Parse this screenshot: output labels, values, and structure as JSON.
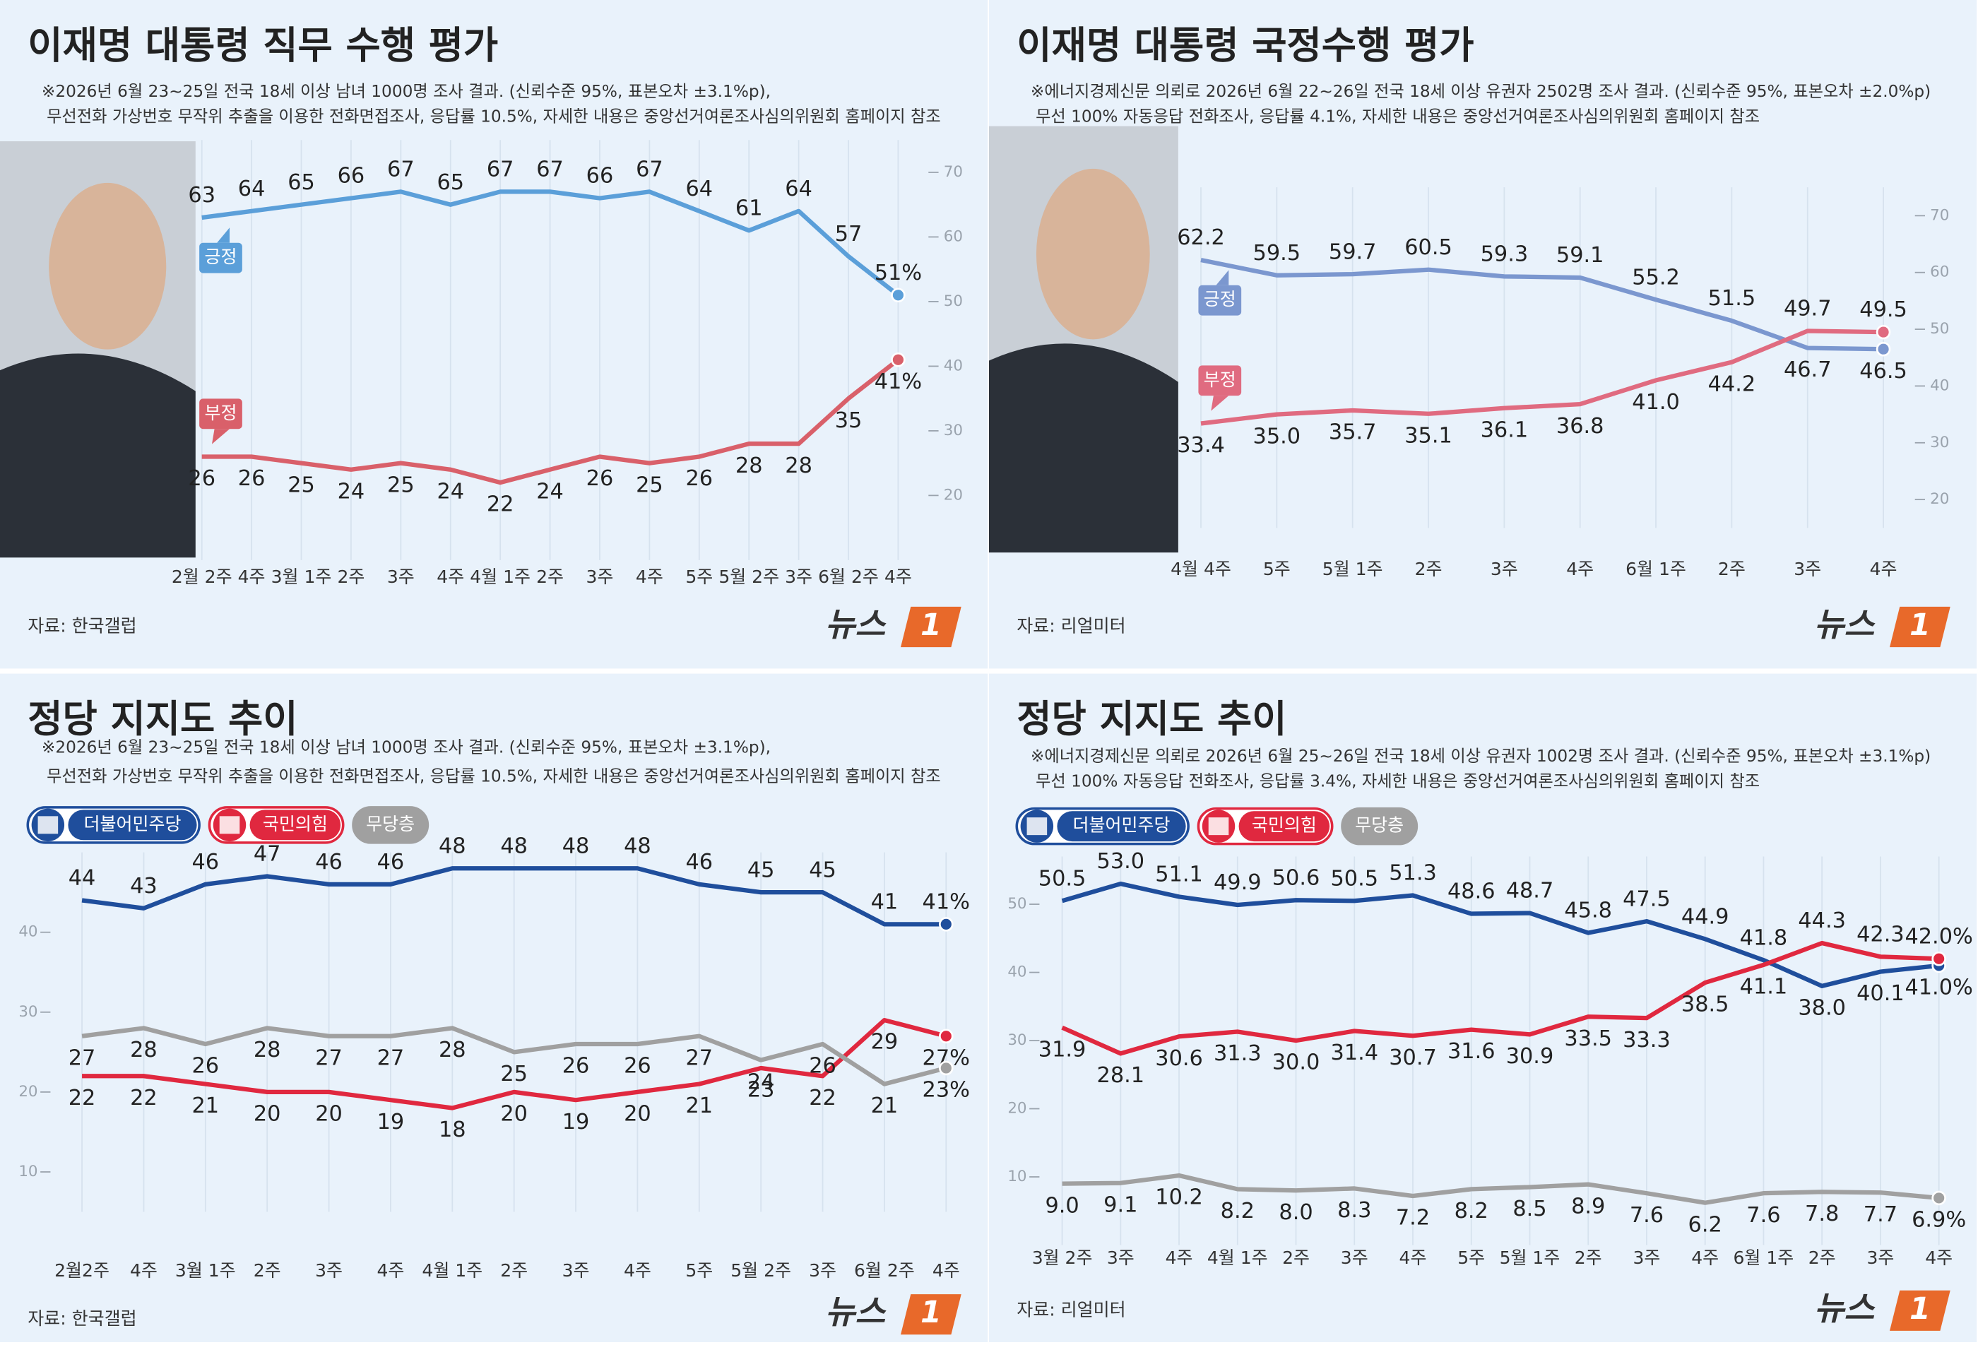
{
  "chart_data": [
    {
      "type": "line",
      "title": "이재명 대통령 직무 수행 평가",
      "notes": [
        "※2026년 6월 23~25일 전국 18세 이상 남녀 1000명 조사 결과. (신뢰수준 95%, 표본오차 ±3.1%p),",
        "무선전화 가상번호 무작위 추출을 이용한 전화면접조사, 응답률 10.5%, 자세한 내용은 중앙선거여론조사심의위원회 홈페이지 참조"
      ],
      "source": "자료: 한국갤럽",
      "logo": [
        "뉴스",
        "1"
      ],
      "categories": [
        "2월 2주",
        "4주",
        "3월 1주",
        "2주",
        "3주",
        "4주",
        "4월 1주",
        "2주",
        "3주",
        "4주",
        "5주",
        "5월 2주",
        "3주",
        "6월 2주",
        "4주"
      ],
      "series": [
        {
          "name": "긍정",
          "color": "#5b9fd9",
          "values": [
            63,
            64,
            65,
            66,
            67,
            65,
            67,
            67,
            66,
            67,
            64,
            61,
            64,
            57,
            51
          ],
          "value_labels": [
            "63",
            "64",
            "65",
            "66",
            "67",
            "65",
            "67",
            "67",
            "66",
            "67",
            "64",
            "61",
            "64",
            "57",
            "51%"
          ]
        },
        {
          "name": "부정",
          "color": "#d9606a",
          "values": [
            26,
            26,
            25,
            24,
            25,
            24,
            22,
            24,
            26,
            25,
            26,
            28,
            28,
            35,
            41
          ],
          "value_labels": [
            "26",
            "26",
            "25",
            "24",
            "25",
            "24",
            "22",
            "24",
            "26",
            "25",
            "26",
            "28",
            "28",
            "35",
            "41%"
          ]
        }
      ],
      "ylim": [
        10,
        75
      ],
      "yticks": [
        20,
        30,
        40,
        50,
        60,
        70
      ],
      "yaxis_side": "right"
    },
    {
      "type": "line",
      "title": "이재명 대통령 국정수행 평가",
      "notes": [
        "※에너지경제신문 의뢰로 2026년 6월 22~26일 전국 18세 이상 유권자 2502명 조사 결과. (신뢰수준 95%, 표본오차 ±2.0%p)",
        "무선 100% 자동응답 전화조사, 응답률 4.1%, 자세한 내용은 중앙선거여론조사심의위원회 홈페이지 참조"
      ],
      "source": "자료: 리얼미터",
      "logo": [
        "뉴스",
        "1"
      ],
      "categories": [
        "4월 4주",
        "5주",
        "5월 1주",
        "2주",
        "3주",
        "4주",
        "6월 1주",
        "2주",
        "3주",
        "4주"
      ],
      "series": [
        {
          "name": "긍정",
          "color": "#7b97cf",
          "values": [
            62.2,
            59.5,
            59.7,
            60.5,
            59.3,
            59.1,
            55.2,
            51.5,
            46.7,
            46.5
          ],
          "value_labels": [
            "62.2",
            "59.5",
            "59.7",
            "60.5",
            "59.3",
            "59.1",
            "55.2",
            "51.5",
            "46.7",
            "46.5"
          ]
        },
        {
          "name": "부정",
          "color": "#e06b80",
          "values": [
            33.4,
            35.0,
            35.7,
            35.1,
            36.1,
            36.8,
            41.0,
            44.2,
            49.7,
            49.5
          ],
          "value_labels": [
            "33.4",
            "35.0",
            "35.7",
            "35.1",
            "36.1",
            "36.8",
            "41.0",
            "44.2",
            "49.7",
            "49.5"
          ]
        }
      ],
      "ylim": [
        15,
        75
      ],
      "yticks": [
        20,
        30,
        40,
        50,
        60,
        70
      ],
      "yaxis_side": "right"
    },
    {
      "type": "line",
      "title": "정당 지지도 추이",
      "notes": [
        "※2026년 6월 23~25일 전국 18세 이상 남녀 1000명 조사 결과. (신뢰수준 95%, 표본오차 ±3.1%p),",
        "무선전화 가상번호 무작위 추출을 이용한 전화면접조사, 응답률 10.5%, 자세한 내용은 중앙선거여론조사심의위원회 홈페이지 참조"
      ],
      "source": "자료: 한국갤럽",
      "logo": [
        "뉴스",
        "1"
      ],
      "categories": [
        "2월2주",
        "4주",
        "3월 1주",
        "2주",
        "3주",
        "4주",
        "4월 1주",
        "2주",
        "3주",
        "4주",
        "5주",
        "5월 2주",
        "3주",
        "6월 2주",
        "4주"
      ],
      "series": [
        {
          "name": "더불어민주당",
          "color": "#1f4e9c",
          "values": [
            44,
            43,
            46,
            47,
            46,
            46,
            48,
            48,
            48,
            48,
            46,
            45,
            45,
            41,
            41
          ],
          "value_labels": [
            "44",
            "43",
            "46",
            "47",
            "46",
            "46",
            "48",
            "48",
            "48",
            "48",
            "46",
            "45",
            "45",
            "41",
            "41%"
          ]
        },
        {
          "name": "국민의힘",
          "color": "#e0283f",
          "values": [
            22,
            22,
            21,
            20,
            20,
            19,
            18,
            20,
            19,
            20,
            21,
            23,
            22,
            29,
            27
          ],
          "value_labels": [
            "22",
            "22",
            "21",
            "20",
            "20",
            "19",
            "18",
            "20",
            "19",
            "20",
            "21",
            "23",
            "22",
            "29",
            "27%"
          ]
        },
        {
          "name": "무당층",
          "color": "#a0a0a0",
          "values": [
            27,
            28,
            26,
            28,
            27,
            27,
            28,
            25,
            26,
            26,
            27,
            24,
            26,
            21,
            23
          ],
          "value_labels": [
            "27",
            "28",
            "26",
            "28",
            "27",
            "27",
            "28",
            "25",
            "26",
            "26",
            "27",
            "24",
            "26",
            "21",
            "23%"
          ]
        }
      ],
      "ylim": [
        5,
        50
      ],
      "yticks": [
        10,
        20,
        30,
        40
      ],
      "yaxis_side": "left",
      "legend": "top-left"
    },
    {
      "type": "line",
      "title": "정당 지지도 추이",
      "notes": [
        "※에너지경제신문 의뢰로 2026년 6월 25~26일 전국 18세 이상 유권자 1002명 조사 결과. (신뢰수준 95%, 표본오차 ±3.1%p)",
        "무선 100% 자동응답 전화조사, 응답률 3.4%, 자세한 내용은 중앙선거여론조사심의위원회 홈페이지 참조"
      ],
      "source": "자료: 리얼미터",
      "logo": [
        "뉴스",
        "1"
      ],
      "categories": [
        "3월 2주",
        "3주",
        "4주",
        "4월 1주",
        "2주",
        "3주",
        "4주",
        "5주",
        "5월 1주",
        "2주",
        "3주",
        "4주",
        "6월 1주",
        "2주",
        "3주",
        "4주"
      ],
      "series": [
        {
          "name": "더불어민주당",
          "color": "#1f4e9c",
          "values": [
            50.5,
            53.0,
            51.1,
            49.9,
            50.6,
            50.5,
            51.3,
            48.6,
            48.7,
            45.8,
            47.5,
            44.9,
            41.8,
            38.0,
            40.1,
            41.0
          ],
          "value_labels": [
            "50.5",
            "53.0",
            "51.1",
            "49.9",
            "50.6",
            "50.5",
            "51.3",
            "48.6",
            "48.7",
            "45.8",
            "47.5",
            "44.9",
            "41.8",
            "38.0",
            "40.1",
            "41.0%"
          ]
        },
        {
          "name": "국민의힘",
          "color": "#e0283f",
          "values": [
            31.9,
            28.1,
            30.6,
            31.3,
            30.0,
            31.4,
            30.7,
            31.6,
            30.9,
            33.5,
            33.3,
            38.5,
            41.1,
            44.3,
            42.3,
            42.0
          ],
          "value_labels": [
            "31.9",
            "28.1",
            "30.6",
            "31.3",
            "30.0",
            "31.4",
            "30.7",
            "31.6",
            "30.9",
            "33.5",
            "33.3",
            "38.5",
            "41.1",
            "44.3",
            "42.3",
            "42.0%"
          ]
        },
        {
          "name": "무당층",
          "color": "#a0a0a0",
          "values": [
            9.0,
            9.1,
            10.2,
            8.2,
            8.0,
            8.3,
            7.2,
            8.2,
            8.5,
            8.9,
            7.6,
            6.2,
            7.6,
            7.8,
            7.7,
            6.9
          ],
          "value_labels": [
            "9.0",
            "9.1",
            "10.2",
            "8.2",
            "8.0",
            "8.3",
            "7.2",
            "8.2",
            "8.5",
            "8.9",
            "7.6",
            "6.2",
            "7.6",
            "7.8",
            "7.7",
            "6.9%"
          ]
        }
      ],
      "ylim": [
        0,
        57
      ],
      "yticks": [
        10,
        20,
        30,
        40,
        50
      ],
      "yaxis_side": "left",
      "legend": "top-left"
    }
  ]
}
